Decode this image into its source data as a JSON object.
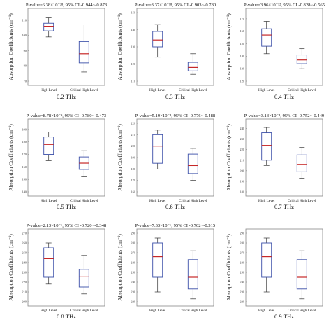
{
  "figure": {
    "panels": [
      {
        "pvalue": "P-value=6.38×10⁻²⁸, 95% CI -0.944~-0.873",
        "freq": "",
        "ylabel": "Absorption Coefficients (cm⁻¹)"
      },
      {
        "pvalue": "P-value=3.37×10⁻¹⁸, 95% CI -0.903~-0.780",
        "freq": "0.2 THz",
        "ylabel": "Absorption Coefficients (cm⁻¹)"
      },
      {
        "pvalue": "P-value=3.96×10⁻¹², 95% CI -0.828~-0.565",
        "freq": "0.3 THz",
        "ylabel": "Absorption Coefficients (cm⁻¹)"
      },
      {
        "pvalue": "P-value=8.78×10⁻⁹, 95% CI -0.780~-0.473",
        "freq": "0.4 THz",
        "ylabel": "Absorption Coefficients (cm⁻¹)"
      },
      {
        "pvalue": "P-value=5.19×10⁻⁸, 95% CI -0.776~-0.488",
        "freq": "0.5 THz",
        "ylabel": "Absorption Coefficients (cm⁻¹)"
      },
      {
        "pvalue": "P-value=3.13×10⁻⁸, 95% CI -0.752~-0.449",
        "freq": "0.6 THz",
        "ylabel": "Absorption Coefficients (cm⁻¹)"
      },
      {
        "pvalue": "P-value=2.13×10⁻⁶, 95% CI -0.720~-0.348",
        "freq": "0.7 THz",
        "ylabel": "Absorption Coefficients (cm⁻¹)"
      },
      {
        "pvalue": "P-value=7.33×10⁻⁶, 95% CI -0.702~-0.315",
        "freq": "0.8 THz",
        "ylabel": "Absorption Coefficients (cm⁻¹)"
      }
    ],
    "last_freq": "0.9 THz"
  },
  "colors": {
    "box": "#3b4fa8",
    "median": "#c62828",
    "whisker": "#333333",
    "frame": "#888888"
  },
  "chart_data": [
    {
      "type": "box",
      "categories": [
        "High Level",
        "Critical High Level"
      ],
      "ylim": [
        70,
        115
      ],
      "yticks": [
        70,
        80,
        90,
        100,
        110
      ],
      "boxes": [
        {
          "min": 99,
          "q1": 103,
          "median": 106,
          "q3": 108,
          "max": 112
        },
        {
          "min": 76,
          "q1": 82,
          "median": 88,
          "q3": 96,
          "max": 107
        }
      ]
    },
    {
      "type": "box",
      "categories": [
        "High Level",
        "Critical High Level"
      ],
      "ylim": [
        110,
        150
      ],
      "yticks": [
        110,
        120,
        130,
        140,
        150
      ],
      "boxes": [
        {
          "min": 124,
          "q1": 130,
          "median": 134,
          "q3": 139,
          "max": 143
        },
        {
          "min": 114,
          "q1": 116,
          "median": 118,
          "q3": 121,
          "max": 126
        }
      ]
    },
    {
      "type": "box",
      "categories": [
        "High Level",
        "Critical High Level"
      ],
      "ylim": [
        120,
        175
      ],
      "yticks": [
        120,
        130,
        140,
        150,
        160,
        170
      ],
      "boxes": [
        {
          "min": 142,
          "q1": 148,
          "median": 157,
          "q3": 162,
          "max": 168
        },
        {
          "min": 130,
          "q1": 134,
          "median": 137,
          "q3": 141,
          "max": 146
        }
      ]
    },
    {
      "type": "box",
      "categories": [
        "High Level",
        "Critical High Level"
      ],
      "ylim": [
        140,
        195
      ],
      "yticks": [
        140,
        150,
        160,
        170,
        180,
        190
      ],
      "boxes": [
        {
          "min": 165,
          "q1": 170,
          "median": 178,
          "q3": 184,
          "max": 188
        },
        {
          "min": 152,
          "q1": 158,
          "median": 163,
          "q3": 168,
          "max": 173
        }
      ]
    },
    {
      "type": "box",
      "categories": [
        "High Level",
        "Critical High Level"
      ],
      "ylim": [
        160,
        220
      ],
      "yticks": [
        160,
        170,
        180,
        190,
        200,
        210,
        220
      ],
      "boxes": [
        {
          "min": 180,
          "q1": 185,
          "median": 200,
          "q3": 210,
          "max": 214
        },
        {
          "min": 170,
          "q1": 176,
          "median": 183,
          "q3": 193,
          "max": 198
        }
      ]
    },
    {
      "type": "box",
      "categories": [
        "High Level",
        "Critical High Level"
      ],
      "ylim": [
        180,
        245
      ],
      "yticks": [
        180,
        190,
        200,
        210,
        220,
        230,
        240
      ],
      "boxes": [
        {
          "min": 205,
          "q1": 210,
          "median": 224,
          "q3": 236,
          "max": 241
        },
        {
          "min": 193,
          "q1": 199,
          "median": 206,
          "q3": 215,
          "max": 222
        }
      ]
    },
    {
      "type": "box",
      "categories": [
        "High Level",
        "Critical High Level"
      ],
      "ylim": [
        200,
        270
      ],
      "yticks": [
        200,
        210,
        220,
        230,
        240,
        250,
        260,
        270
      ],
      "boxes": [
        {
          "min": 218,
          "q1": 225,
          "median": 244,
          "q3": 255,
          "max": 260
        },
        {
          "min": 208,
          "q1": 215,
          "median": 226,
          "q3": 233,
          "max": 247
        }
      ]
    },
    {
      "type": "box",
      "categories": [
        "High Level",
        "Critical High Level"
      ],
      "ylim": [
        220,
        290
      ],
      "yticks": [
        220,
        230,
        240,
        250,
        260,
        270,
        280,
        290
      ],
      "boxes": [
        {
          "min": 230,
          "q1": 245,
          "median": 266,
          "q3": 280,
          "max": 285
        },
        {
          "min": 223,
          "q1": 233,
          "median": 245,
          "q3": 263,
          "max": 272
        }
      ]
    }
  ]
}
